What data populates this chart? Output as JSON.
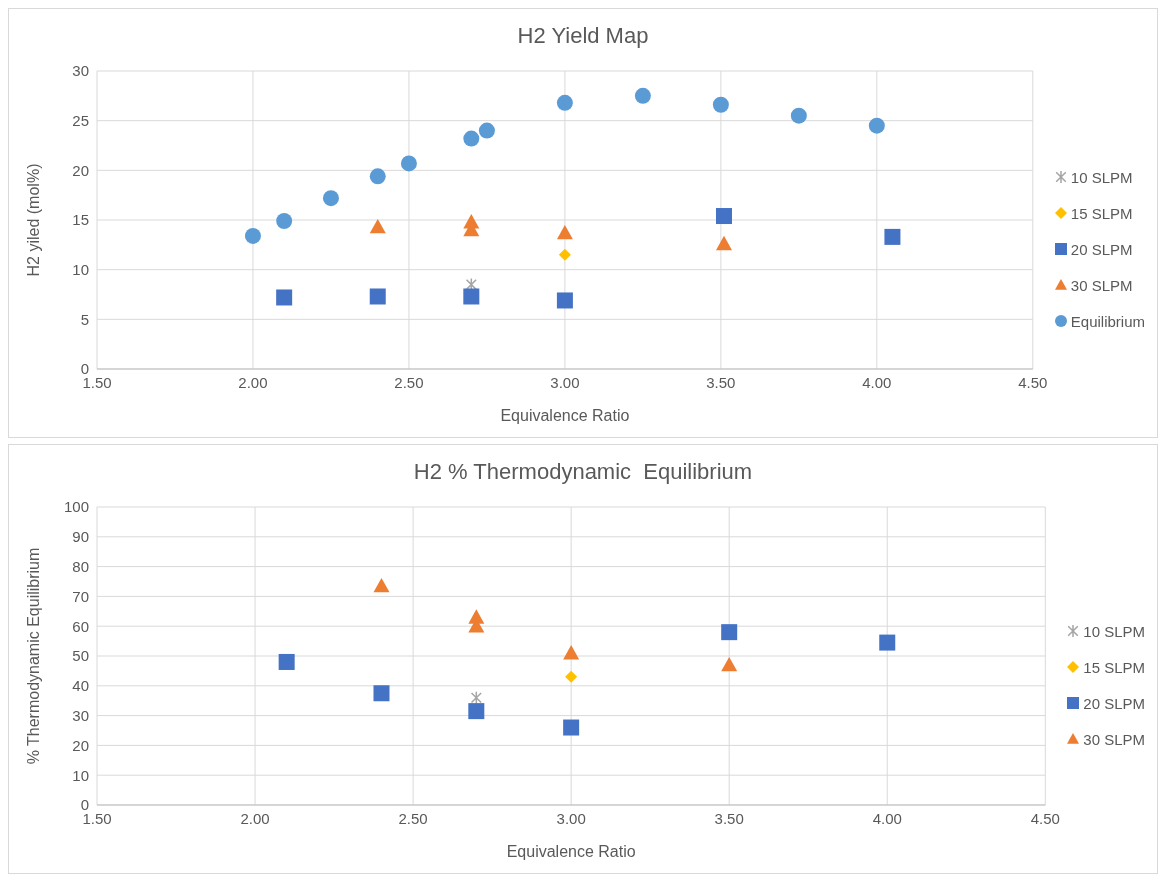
{
  "chart_data": [
    {
      "type": "scatter",
      "title": "H2 Yield Map",
      "xlabel": "Equivalence Ratio",
      "ylabel": "H2 yiled (mol%)",
      "xlim": [
        1.5,
        4.5
      ],
      "xticks": [
        {
          "value": 1.5,
          "label": "1.50"
        },
        {
          "value": 2,
          "label": "2.00"
        },
        {
          "value": 2.5,
          "label": "2.50"
        },
        {
          "value": 3,
          "label": "3.00"
        },
        {
          "value": 3.5,
          "label": "3.50"
        },
        {
          "value": 4,
          "label": "4.00"
        },
        {
          "value": 4.5,
          "label": "4.50"
        }
      ],
      "ylim": [
        0,
        30
      ],
      "yticks": [
        0,
        5,
        10,
        15,
        20,
        25,
        30
      ],
      "grid": true,
      "legend": "right",
      "series": [
        {
          "name": "10 SLPM",
          "color": "#a5a5a5",
          "marker": "cross",
          "x": [
            2.7
          ],
          "values": [
            8.5
          ]
        },
        {
          "name": "15 SLPM",
          "color": "#ffc000",
          "marker": "diamond",
          "x": [
            3.0
          ],
          "values": [
            11.5
          ]
        },
        {
          "name": "20 SLPM",
          "color": "#4472c4",
          "marker": "square",
          "x": [
            2.1,
            2.4,
            2.7,
            3.0,
            3.51,
            4.05
          ],
          "values": [
            7.2,
            7.3,
            7.3,
            6.9,
            15.4,
            13.3
          ]
        },
        {
          "name": "30 SLPM",
          "color": "#ed7d31",
          "marker": "triangle",
          "x": [
            2.4,
            2.7,
            2.7,
            3.0,
            3.51
          ],
          "values": [
            14.3,
            14.8,
            14.0,
            13.7,
            12.6
          ]
        },
        {
          "name": "Equilibrium",
          "color": "#5b9bd5",
          "marker": "circle",
          "x": [
            2.0,
            2.1,
            2.25,
            2.4,
            2.5,
            2.7,
            2.75,
            3.0,
            3.25,
            3.5,
            3.75,
            4.0
          ],
          "values": [
            13.4,
            14.9,
            17.2,
            19.4,
            20.7,
            23.2,
            24.0,
            26.8,
            27.5,
            26.6,
            25.5,
            24.5
          ]
        }
      ]
    },
    {
      "type": "scatter",
      "title": "H2 % Thermodynamic  Equilibrium",
      "xlabel": "Equivalence Ratio",
      "ylabel": "% Thermodynamic Equilibrium",
      "xlim": [
        1.5,
        4.5
      ],
      "xticks": [
        {
          "value": 1.5,
          "label": "1.50"
        },
        {
          "value": 2,
          "label": "2.00"
        },
        {
          "value": 2.5,
          "label": "2.50"
        },
        {
          "value": 3,
          "label": "3.00"
        },
        {
          "value": 3.5,
          "label": "3.50"
        },
        {
          "value": 4,
          "label": "4.00"
        },
        {
          "value": 4.5,
          "label": "4.50"
        }
      ],
      "ylim": [
        0,
        100
      ],
      "yticks": [
        0,
        10,
        20,
        30,
        40,
        50,
        60,
        70,
        80,
        90,
        100
      ],
      "grid": true,
      "legend": "right",
      "series": [
        {
          "name": "10 SLPM",
          "color": "#a5a5a5",
          "marker": "cross",
          "x": [
            2.7
          ],
          "values": [
            36
          ]
        },
        {
          "name": "15 SLPM",
          "color": "#ffc000",
          "marker": "diamond",
          "x": [
            3.0
          ],
          "values": [
            43
          ]
        },
        {
          "name": "20 SLPM",
          "color": "#4472c4",
          "marker": "square",
          "x": [
            2.1,
            2.4,
            2.7,
            3.0,
            3.5,
            4.0
          ],
          "values": [
            48,
            37.5,
            31.5,
            26,
            58,
            54.5
          ]
        },
        {
          "name": "30 SLPM",
          "color": "#ed7d31",
          "marker": "triangle",
          "x": [
            2.4,
            2.7,
            2.7,
            3.0,
            3.5
          ],
          "values": [
            73.5,
            63,
            60,
            51,
            47
          ]
        }
      ]
    }
  ]
}
